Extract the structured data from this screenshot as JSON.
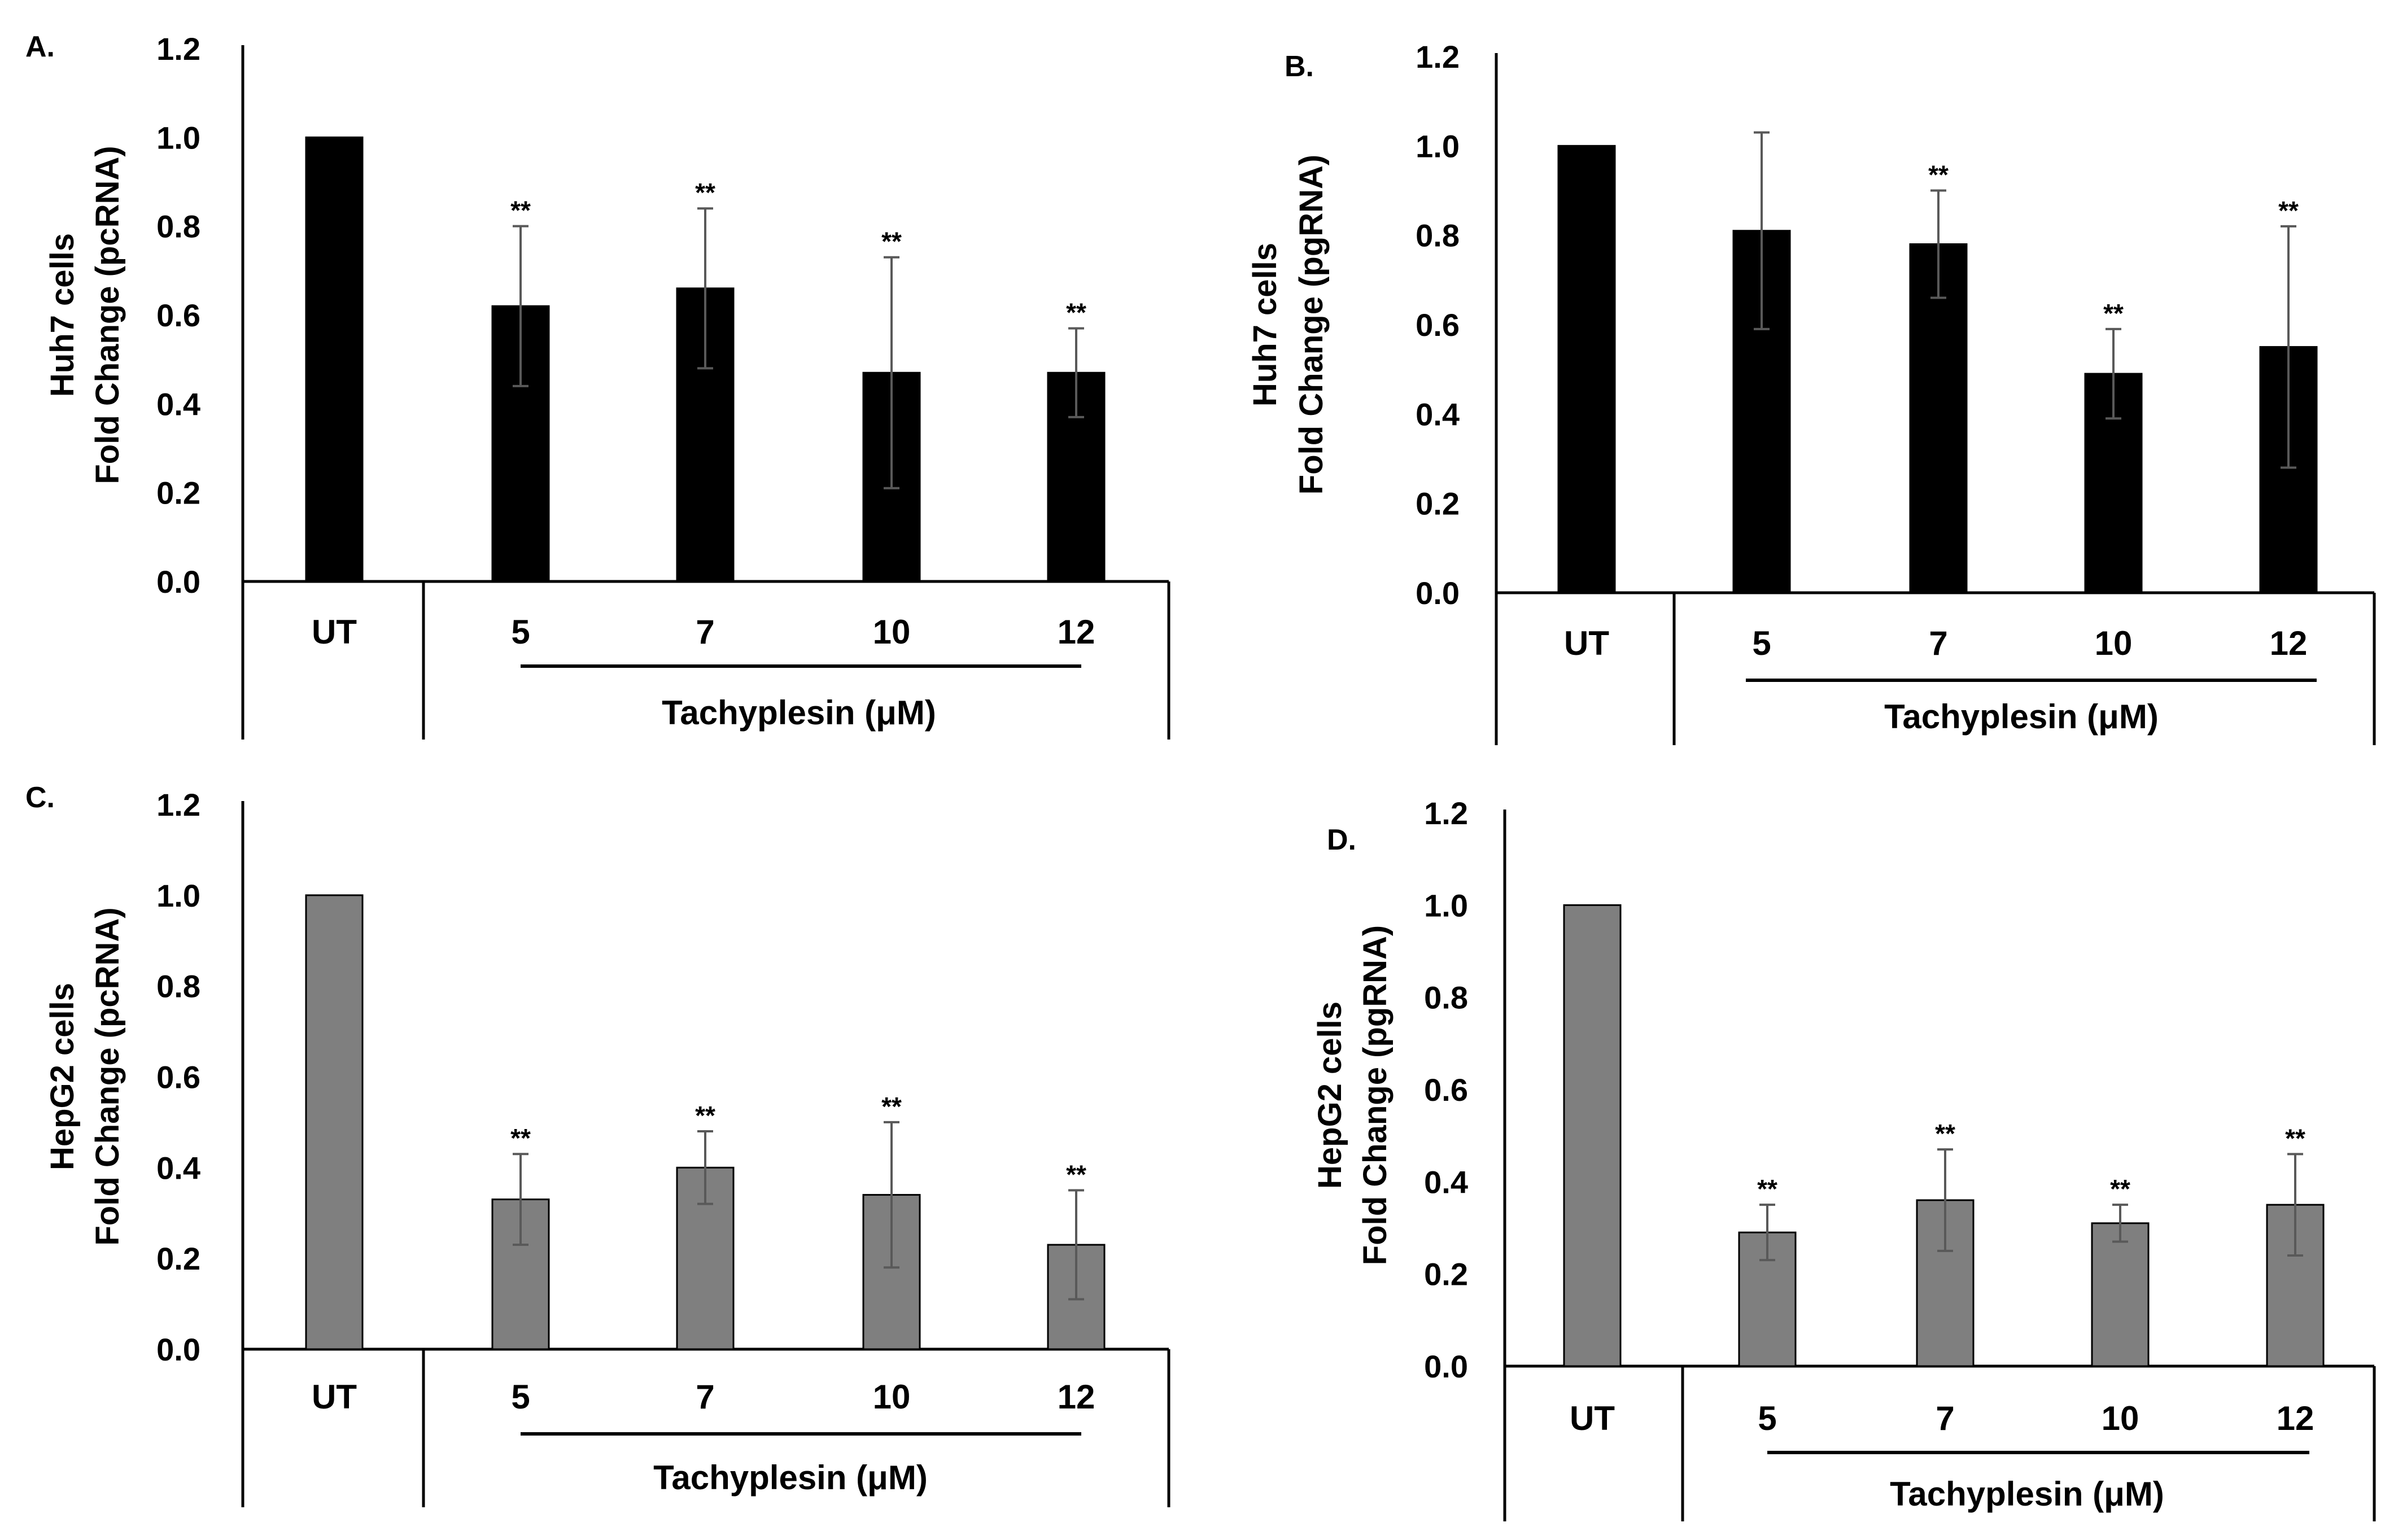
{
  "figure": {
    "background": "#ffffff",
    "axis_color": "#000000",
    "errorbar_color": "#595959"
  },
  "chart_data": [
    {
      "panel": "A.",
      "type": "bar",
      "ylabel": [
        "Huh7 cells",
        "Fold Change (pcRNA)"
      ],
      "ylim": [
        0,
        1.2
      ],
      "yticks": [
        "0.0",
        "0.2",
        "0.4",
        "0.6",
        "0.8",
        "1.0",
        "1.2"
      ],
      "control_label": "UT",
      "group_label": "Tachyplesin  (μM)",
      "categories": [
        "UT",
        "5",
        "7",
        "10",
        "12"
      ],
      "values": [
        1.0,
        0.62,
        0.66,
        0.47,
        0.47
      ],
      "errors": [
        0.0,
        0.18,
        0.18,
        0.26,
        0.1
      ],
      "significance": [
        "",
        "**",
        "**",
        "**",
        "**"
      ],
      "bar_color": "#000000"
    },
    {
      "panel": "B.",
      "type": "bar",
      "ylabel": [
        "Huh7 cells",
        "Fold Change (pgRNA)"
      ],
      "ylim": [
        0,
        1.2
      ],
      "yticks": [
        "0.0",
        "0.2",
        "0.4",
        "0.6",
        "0.8",
        "1.0",
        "1.2"
      ],
      "control_label": "UT",
      "group_label": "Tachyplesin  (μM)",
      "categories": [
        "UT",
        "5",
        "7",
        "10",
        "12"
      ],
      "values": [
        1.0,
        0.81,
        0.78,
        0.49,
        0.55
      ],
      "errors": [
        0.0,
        0.22,
        0.12,
        0.1,
        0.27
      ],
      "significance": [
        "",
        "",
        "**",
        "**",
        "**"
      ],
      "bar_color": "#000000"
    },
    {
      "panel": "C.",
      "type": "bar",
      "ylabel": [
        "HepG2 cells",
        "Fold Change (pcRNA)"
      ],
      "ylim": [
        0,
        1.2
      ],
      "yticks": [
        "0.0",
        "0.2",
        "0.4",
        "0.6",
        "0.8",
        "1.0",
        "1.2"
      ],
      "control_label": "UT",
      "group_label": "Tachyplesin (μM)",
      "categories": [
        "UT",
        "5",
        "7",
        "10",
        "12"
      ],
      "values": [
        1.0,
        0.33,
        0.4,
        0.34,
        0.23
      ],
      "errors": [
        0.0,
        0.1,
        0.08,
        0.16,
        0.12
      ],
      "significance": [
        "",
        "**",
        "**",
        "**",
        "**"
      ],
      "bar_color": "#7f7f7f"
    },
    {
      "panel": "D.",
      "type": "bar",
      "ylabel": [
        "HepG2 cells",
        "Fold Change (pgRNA)"
      ],
      "ylim": [
        0,
        1.2
      ],
      "yticks": [
        "0.0",
        "0.2",
        "0.4",
        "0.6",
        "0.8",
        "1.0",
        "1.2"
      ],
      "control_label": "UT",
      "group_label": "Tachyplesin (μM)",
      "categories": [
        "UT",
        "5",
        "7",
        "10",
        "12"
      ],
      "values": [
        1.0,
        0.29,
        0.36,
        0.31,
        0.35
      ],
      "errors": [
        0.0,
        0.06,
        0.11,
        0.04,
        0.11
      ],
      "significance": [
        "",
        "**",
        "**",
        "**",
        "**"
      ],
      "bar_color": "#7f7f7f"
    }
  ]
}
